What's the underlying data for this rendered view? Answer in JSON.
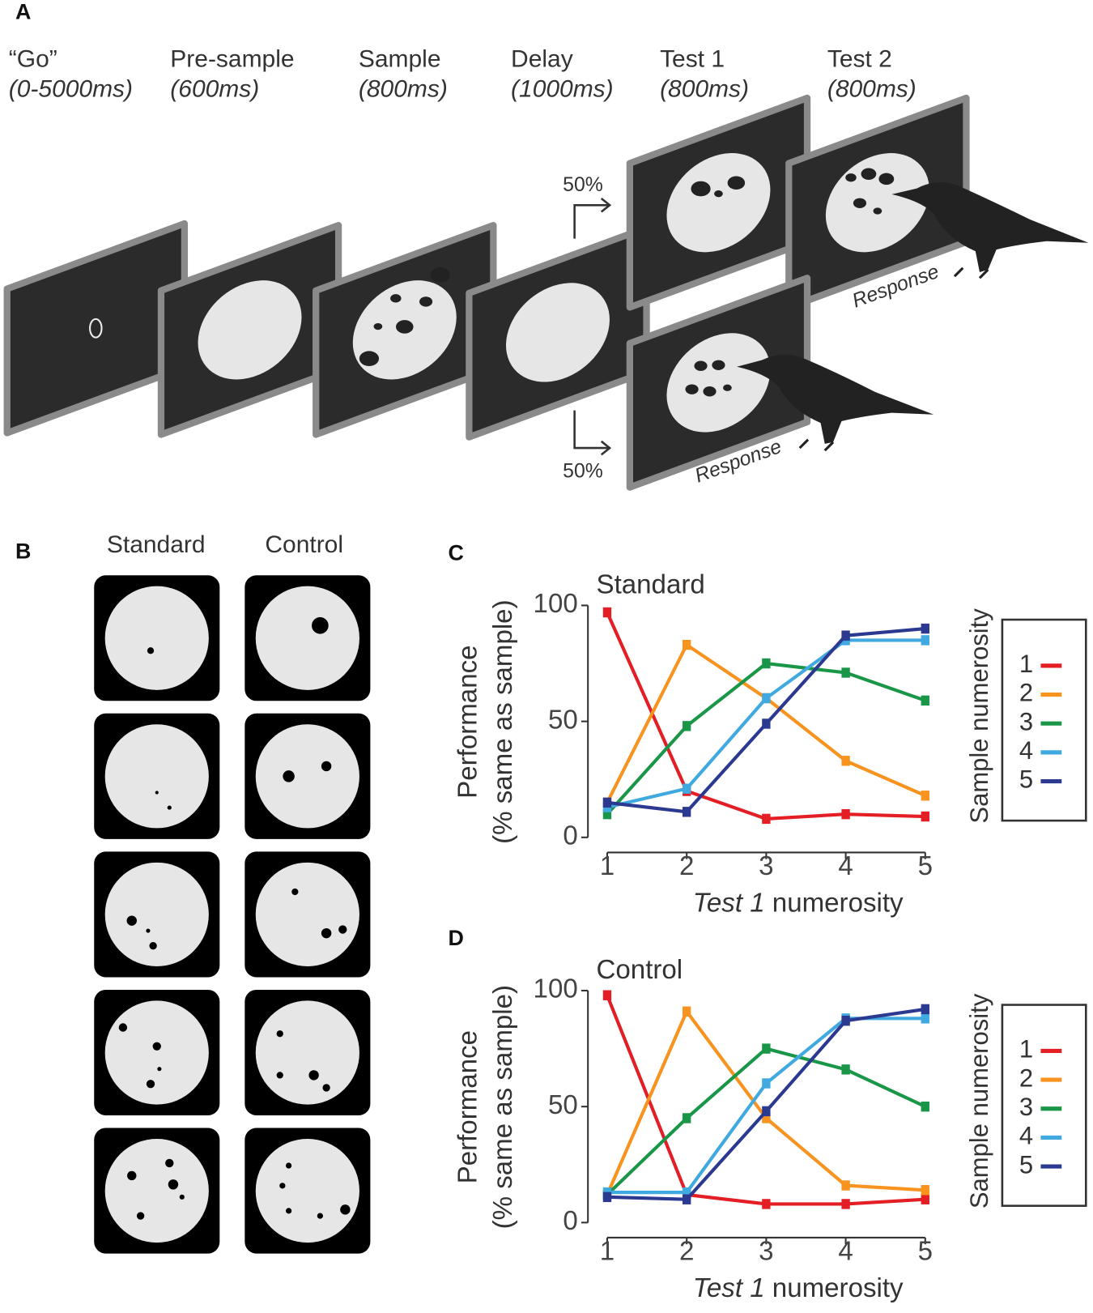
{
  "panel_a": {
    "label": "A",
    "steps": [
      {
        "name": "“Go”",
        "duration": "(0-5000ms)"
      },
      {
        "name": "Pre-sample",
        "duration": "(600ms)"
      },
      {
        "name": "Sample",
        "duration": "(800ms)"
      },
      {
        "name": "Delay",
        "duration": "(1000ms)"
      },
      {
        "name": "Test 1",
        "duration": "(800ms)"
      },
      {
        "name": "Test 2",
        "duration": "(800ms)"
      }
    ],
    "branch_upper": "50%",
    "branch_lower": "50%",
    "response_upper": "Response",
    "response_lower": "Response"
  },
  "panel_b": {
    "label": "B",
    "columns": [
      "Standard",
      "Control"
    ]
  },
  "chart_data": [
    {
      "type": "line",
      "panel": "C",
      "title": "Standard",
      "ylabel": [
        "Performance",
        "(% same as sample)"
      ],
      "xlabel": [
        "Test 1",
        " numerosity"
      ],
      "x": [
        1,
        2,
        3,
        4,
        5
      ],
      "xlim": [
        1,
        5
      ],
      "xticks": [
        1,
        2,
        3,
        4,
        5
      ],
      "ylim": [
        0,
        100
      ],
      "yticks": [
        0,
        50,
        100
      ],
      "legend_title": "Sample numerosity",
      "series": [
        {
          "name": "1",
          "color": "#e31e24",
          "values": [
            97,
            20,
            8,
            10,
            9
          ]
        },
        {
          "name": "2",
          "color": "#f7931e",
          "values": [
            15,
            83,
            60,
            33,
            18
          ]
        },
        {
          "name": "3",
          "color": "#1a9648",
          "values": [
            10,
            48,
            75,
            71,
            59
          ]
        },
        {
          "name": "4",
          "color": "#3fa9e0",
          "values": [
            13,
            21,
            60,
            85,
            85
          ]
        },
        {
          "name": "5",
          "color": "#2b3990",
          "values": [
            15,
            11,
            49,
            87,
            90
          ]
        }
      ]
    },
    {
      "type": "line",
      "panel": "D",
      "title": "Control",
      "ylabel": [
        "Performance",
        "(% same as sample)"
      ],
      "xlabel": [
        "Test 1",
        " numerosity"
      ],
      "x": [
        1,
        2,
        3,
        4,
        5
      ],
      "xlim": [
        1,
        5
      ],
      "xticks": [
        1,
        2,
        3,
        4,
        5
      ],
      "ylim": [
        0,
        100
      ],
      "yticks": [
        0,
        50,
        100
      ],
      "legend_title": "Sample numerosity",
      "series": [
        {
          "name": "1",
          "color": "#e31e24",
          "values": [
            98,
            12,
            8,
            8,
            10
          ]
        },
        {
          "name": "2",
          "color": "#f7931e",
          "values": [
            12,
            91,
            45,
            16,
            14
          ]
        },
        {
          "name": "3",
          "color": "#1a9648",
          "values": [
            12,
            45,
            75,
            66,
            50
          ]
        },
        {
          "name": "4",
          "color": "#3fa9e0",
          "values": [
            13,
            13,
            60,
            88,
            88
          ]
        },
        {
          "name": "5",
          "color": "#2b3990",
          "values": [
            11,
            10,
            48,
            87,
            92
          ]
        }
      ]
    }
  ]
}
